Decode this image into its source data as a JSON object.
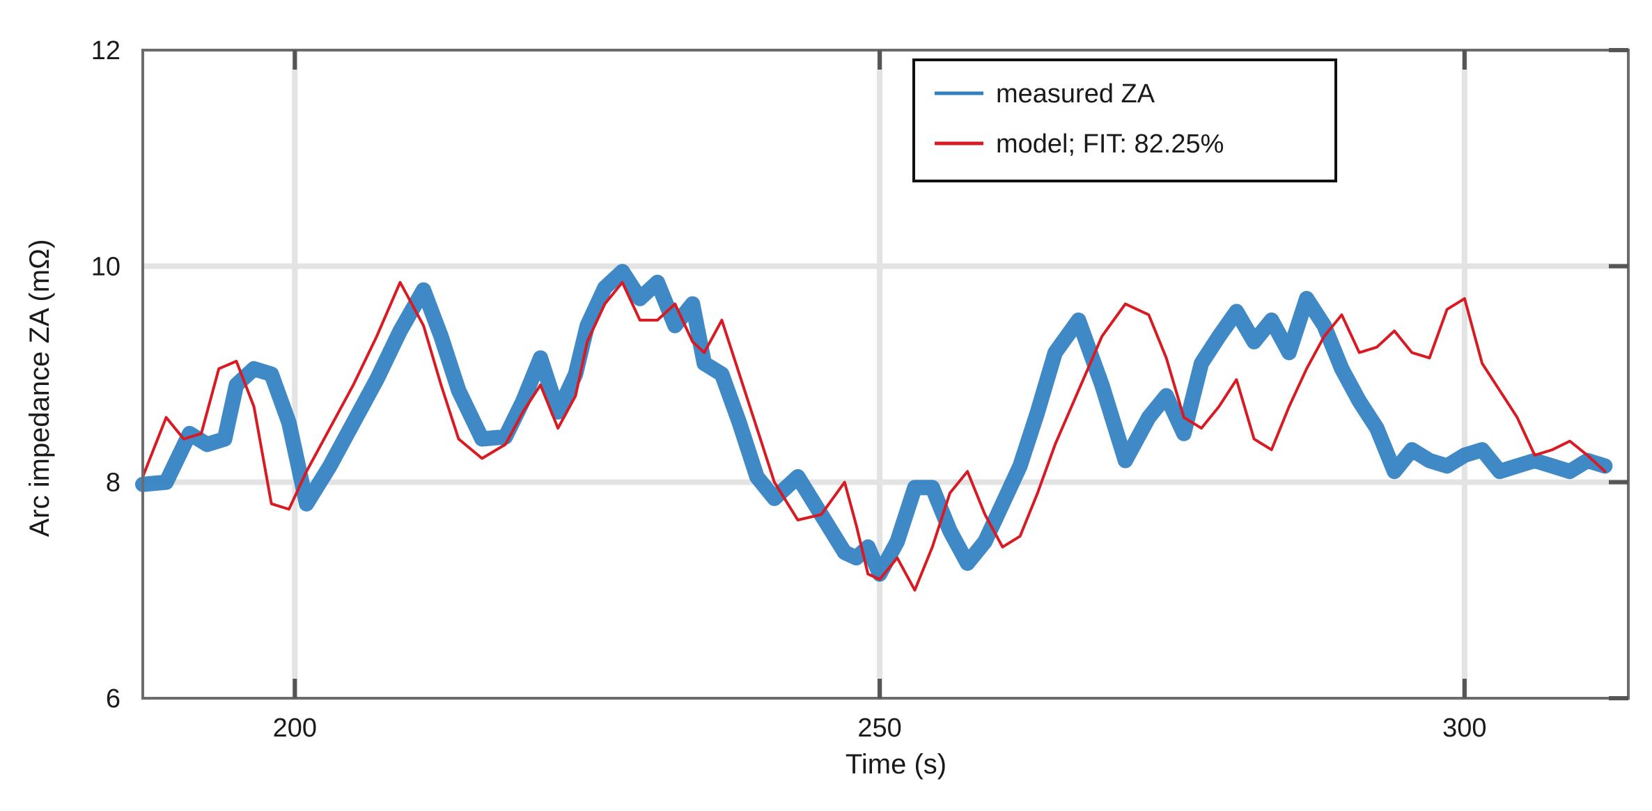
{
  "chart_data": {
    "type": "line",
    "xlabel": "Time (s)",
    "ylabel": "Arc impedance ZA (mΩ)",
    "xlim": [
      187,
      314
    ],
    "ylim": [
      6,
      12
    ],
    "xticks": [
      200,
      250,
      300
    ],
    "yticks": [
      6,
      8,
      10,
      12
    ],
    "xtick_labels": [
      "200",
      "250",
      "300"
    ],
    "ytick_labels": [
      "6",
      "8",
      "10",
      "12"
    ],
    "grid": true,
    "legend_position": "top-right",
    "series": [
      {
        "name": "measured ZA",
        "color": "#2f7fc1",
        "x": [
          187,
          189,
          191,
          192.5,
          194,
          195,
          196.5,
          198,
          199.5,
          201,
          203,
          205,
          207,
          209,
          211,
          212.5,
          214,
          216,
          218,
          219.5,
          221,
          222.5,
          224,
          225,
          226.5,
          228,
          229.5,
          231,
          232.5,
          234,
          235,
          236.5,
          238,
          239.5,
          241,
          243,
          245,
          247,
          248,
          249,
          250,
          251.5,
          253,
          254.5,
          256,
          257.5,
          259,
          260.5,
          262,
          263.5,
          265,
          267,
          269,
          271,
          273,
          274.5,
          276,
          277.5,
          279,
          280.5,
          282,
          283.5,
          285,
          286.5,
          288,
          289.5,
          291,
          292.5,
          294,
          295.5,
          297,
          298.5,
          300,
          301.5,
          303,
          304.5,
          306,
          307.5,
          309,
          310.5,
          312
        ],
        "y": [
          7.98,
          8.0,
          8.45,
          8.35,
          8.4,
          8.9,
          9.05,
          9.0,
          8.55,
          7.8,
          8.15,
          8.55,
          8.95,
          9.4,
          9.78,
          9.35,
          8.85,
          8.4,
          8.42,
          8.75,
          9.15,
          8.65,
          9.0,
          9.45,
          9.8,
          9.95,
          9.7,
          9.85,
          9.45,
          9.65,
          9.1,
          9.0,
          8.55,
          8.05,
          7.85,
          8.05,
          7.7,
          7.35,
          7.3,
          7.4,
          7.15,
          7.45,
          7.95,
          7.95,
          7.55,
          7.25,
          7.45,
          7.8,
          8.15,
          8.65,
          9.2,
          9.5,
          8.9,
          8.2,
          8.6,
          8.8,
          8.45,
          9.1,
          9.35,
          9.58,
          9.3,
          9.5,
          9.2,
          9.7,
          9.45,
          9.05,
          8.75,
          8.5,
          8.1,
          8.3,
          8.2,
          8.15,
          8.25,
          8.3,
          8.1,
          8.15,
          8.2,
          8.15,
          8.1,
          8.2,
          8.15
        ],
        "_x_note": ""
      },
      {
        "name": "model; FIT: 82.25%",
        "color": "#d81b23",
        "x": [
          187,
          189,
          190.5,
          192,
          193.5,
          195,
          196.5,
          198,
          199.5,
          201,
          203,
          205,
          207,
          209,
          211,
          212.5,
          214,
          216,
          218,
          219.5,
          221,
          222.5,
          224,
          225,
          226.5,
          228,
          229.5,
          231,
          232.5,
          234,
          235,
          236.5,
          238,
          239.5,
          241,
          243,
          245,
          247,
          248,
          249,
          250,
          251.5,
          253,
          254.5,
          256,
          257.5,
          259,
          260.5,
          262,
          263.5,
          265,
          267,
          269,
          271,
          273,
          274.5,
          276,
          277.5,
          279,
          280.5,
          282,
          283.5,
          285,
          286.5,
          288,
          289.5,
          291,
          292.5,
          294,
          295.5,
          297,
          298.5,
          300,
          301.5,
          303,
          304.5,
          306,
          307.5,
          309,
          310.5,
          312
        ],
        "y": [
          8.05,
          8.6,
          8.4,
          8.45,
          9.05,
          9.12,
          8.7,
          7.8,
          7.75,
          8.1,
          8.5,
          8.9,
          9.35,
          9.85,
          9.45,
          8.9,
          8.4,
          8.22,
          8.35,
          8.65,
          8.9,
          8.5,
          8.8,
          9.3,
          9.65,
          9.85,
          9.5,
          9.5,
          9.65,
          9.3,
          9.2,
          9.5,
          9.0,
          8.5,
          8.0,
          7.65,
          7.7,
          8.0,
          7.6,
          7.15,
          7.1,
          7.3,
          7.0,
          7.4,
          7.9,
          8.1,
          7.7,
          7.4,
          7.5,
          7.9,
          8.35,
          8.85,
          9.35,
          9.65,
          9.55,
          9.15,
          8.6,
          8.5,
          8.7,
          8.95,
          8.4,
          8.3,
          8.7,
          9.05,
          9.35,
          9.55,
          9.2,
          9.25,
          9.4,
          9.2,
          9.15,
          9.6,
          9.7,
          9.1,
          8.85,
          8.6,
          8.25,
          8.3,
          8.38,
          8.25,
          8.1
        ]
      }
    ]
  }
}
